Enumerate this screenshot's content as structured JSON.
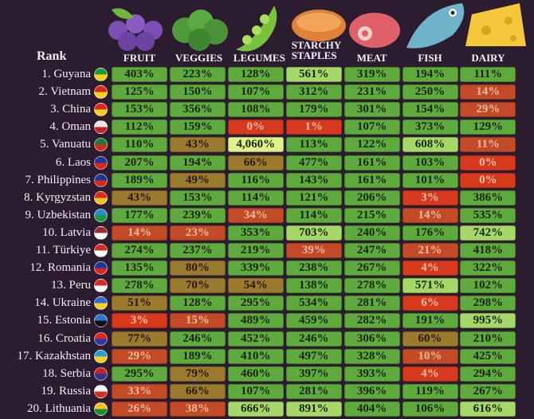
{
  "header": {
    "rank": "Rank",
    "columns": [
      "FRUIT",
      "VEGGIES",
      "LEGUMES",
      "STARCHY STAPLES",
      "MEAT",
      "FISH",
      "DAIRY"
    ]
  },
  "rows": [
    {
      "label": "1. Guyana",
      "cells": [
        "403%",
        "223%",
        "128%",
        "561%",
        "319%",
        "194%",
        "111%"
      ]
    },
    {
      "label": "2. Vietnam",
      "cells": [
        "125%",
        "150%",
        "107%",
        "312%",
        "231%",
        "250%",
        "14%"
      ]
    },
    {
      "label": "3. China",
      "cells": [
        "153%",
        "356%",
        "108%",
        "179%",
        "301%",
        "154%",
        "29%"
      ]
    },
    {
      "label": "4. Oman",
      "cells": [
        "112%",
        "159%",
        "0%",
        "1%",
        "107%",
        "373%",
        "129%"
      ]
    },
    {
      "label": "5. Vanuatu",
      "cells": [
        "110%",
        "43%",
        "4,060%",
        "113%",
        "122%",
        "608%",
        "11%"
      ]
    },
    {
      "label": "6. Laos",
      "cells": [
        "207%",
        "194%",
        "66%",
        "477%",
        "161%",
        "103%",
        "0%"
      ]
    },
    {
      "label": "7. Philippines",
      "cells": [
        "189%",
        "49%",
        "116%",
        "143%",
        "161%",
        "101%",
        "0%"
      ]
    },
    {
      "label": "8. Kyrgyzstan",
      "cells": [
        "43%",
        "153%",
        "114%",
        "121%",
        "206%",
        "3%",
        "386%"
      ]
    },
    {
      "label": "9. Uzbekistan",
      "cells": [
        "177%",
        "239%",
        "34%",
        "114%",
        "215%",
        "14%",
        "535%"
      ]
    },
    {
      "label": "10. Latvia",
      "cells": [
        "14%",
        "23%",
        "353%",
        "703%",
        "240%",
        "176%",
        "742%"
      ]
    },
    {
      "label": "11. Türkiye",
      "cells": [
        "274%",
        "237%",
        "219%",
        "39%",
        "247%",
        "21%",
        "418%"
      ]
    },
    {
      "label": "12. Romania",
      "cells": [
        "135%",
        "80%",
        "339%",
        "238%",
        "267%",
        "4%",
        "322%"
      ]
    },
    {
      "label": "13. Peru",
      "cells": [
        "278%",
        "70%",
        "54%",
        "138%",
        "278%",
        "571%",
        "102%"
      ]
    },
    {
      "label": "14. Ukraine",
      "cells": [
        "51%",
        "128%",
        "295%",
        "534%",
        "281%",
        "6%",
        "298%"
      ]
    },
    {
      "label": "15. Estonia",
      "cells": [
        "3%",
        "15%",
        "489%",
        "459%",
        "282%",
        "191%",
        "995%"
      ]
    },
    {
      "label": "16. Croatia",
      "cells": [
        "77%",
        "246%",
        "452%",
        "246%",
        "306%",
        "60%",
        "210%"
      ]
    },
    {
      "label": "17. Kazakhstan",
      "cells": [
        "29%",
        "189%",
        "410%",
        "497%",
        "328%",
        "10%",
        "425%"
      ]
    },
    {
      "label": "18. Serbia",
      "cells": [
        "295%",
        "79%",
        "460%",
        "397%",
        "393%",
        "4%",
        "294%"
      ]
    },
    {
      "label": "19. Russia",
      "cells": [
        "33%",
        "66%",
        "107%",
        "281%",
        "396%",
        "119%",
        "267%"
      ]
    },
    {
      "label": "20. Lithuania",
      "cells": [
        "26%",
        "38%",
        "666%",
        "891%",
        "404%",
        "106%",
        "616%"
      ]
    }
  ]
}
